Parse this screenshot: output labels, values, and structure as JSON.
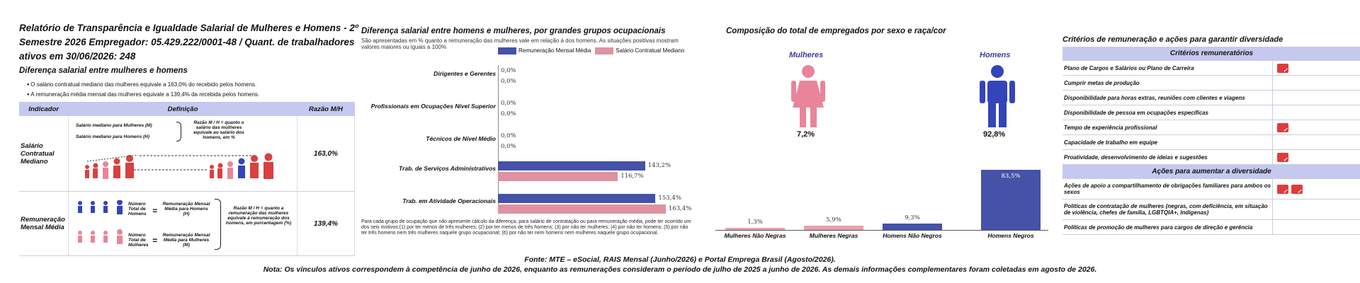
{
  "panel1": {
    "title": "Relatório de Transparência e Igualdade Salarial de Mulheres e Homens - 2º Semestre 2026 Empregador: 05.429.222/0001-48 / Quant. de trabalhadores ativos em 30/06/2026: 248",
    "subtitle": "Diferença salarial entre mulheres e homens",
    "bullets": [
      "O salário contratual mediano das mulheres equivale a 163,0% do recebido pelos homens.",
      "A remuneração média mensal das mulheres equivale a 139,4% da recebida pelos homens."
    ],
    "table": {
      "headers": [
        "Indicador",
        "Definição",
        "Razão M/H"
      ],
      "rows": [
        {
          "indicator": "Salário Contratual Mediano",
          "def_line1": "Salário mediano para Mulheres (M)",
          "def_line2": "Salário mediano para Homens (H)",
          "def_note": "Razão M / H = quanto o salário das mulheres equivale ao salário dos homens, em %",
          "ratio": "163,0%"
        },
        {
          "indicator": "Remuneração Mensal Média",
          "def_men_label": "Número Total de Homens",
          "def_men_result": "Remuneração Mensal Média para Homens (H)",
          "def_women_label": "Número Total de Mulheres",
          "def_women_result": "Remuneração Mensal Média para Mulheres (M)",
          "def_note": "Razão M / H = quanto a remuneração das mulheres equivale à remuneração dos homens, em porcentagem (%)",
          "ratio": "139,4%"
        }
      ]
    }
  },
  "panel2": {
    "title": "Diferença salarial entre homens e mulheres, por grandes grupos ocupacionais",
    "note": "São apresentadas em % quanto a remuneração das mulheres vale em relação à dos homens. As situações positivas mostram valores maiores ou iguais a 100%",
    "legend": [
      "Remuneração Mensal Média",
      "Salário Contratual Mediano"
    ],
    "colors": {
      "media": "#4452a8",
      "mediano": "#e092a0"
    },
    "footnote": "Para cada grupo de ocupação que não apresente cálculo da diferença, para salário de contratação ou para remuneração média, pode ter ocorrido um dos seis motivos:(1) por ter menos de três mulheres; (2) por ter menos de três homens; (3) por não ter mulheres; (4) por não ter homens; (5) por não ter três homens nem três mulheres naquele grupo ocupacional; (6) por não ter nem homens nem mulheres naquele grupo ocupacional.",
    "chart_data": {
      "type": "bar",
      "categories": [
        "Dirigentes e Gerentes",
        "Profissionais em Ocupações Nível Superior",
        "Técnicos de Nível Médio",
        "Trab. de Serviços Administrativos",
        "Trab. em Atividade Operacionais"
      ],
      "series": [
        {
          "name": "Remuneração Mensal Média",
          "values": [
            0,
            0,
            0,
            143.2,
            153.4
          ],
          "labels": [
            "0,0%",
            "0,0%",
            "0,0%",
            "143,2%",
            "153,4%"
          ]
        },
        {
          "name": "Salário Contratual Mediano",
          "values": [
            0,
            0,
            0,
            116.7,
            163.4
          ],
          "labels": [
            "0,0%",
            "0,0%",
            "0,0%",
            "116,7%",
            "163,4%"
          ]
        }
      ]
    }
  },
  "panel3": {
    "title": "Composição do total de empregados por sexo e raça/cor",
    "women_label": "Mulheres",
    "men_label": "Homens",
    "women_pct": "7,2%",
    "men_pct": "92,8%",
    "colors": {
      "women": "#e8859a",
      "men": "#3345b8"
    },
    "chart_data": {
      "type": "bar",
      "categories": [
        "Mulheres Não Negras",
        "Mulheres Negras",
        "Homens Não Negros",
        "Homens Negros"
      ],
      "values": [
        1.3,
        5.9,
        9.3,
        83.5
      ],
      "labels": [
        "1,3%",
        "5,9%",
        "9,3%",
        "83,5%"
      ],
      "colors": [
        "#e8a0ad",
        "#e8a0ad",
        "#4452a8",
        "#4452a8"
      ]
    }
  },
  "panel4": {
    "title": "Critérios de remuneração e ações para garantir diversidade",
    "section1": "Critérios remuneratórios",
    "criteria": [
      {
        "label": "Plano de Cargos e Salários ou Plano de Carreira",
        "icons": 1
      },
      {
        "label": "Cumprir metas de produção",
        "icons": 0
      },
      {
        "label": "Disponibilidade para horas extras, reuniões com clientes e viagens",
        "icons": 0
      },
      {
        "label": "Disponibilidade de pessoa em ocupações específicas",
        "icons": 0
      },
      {
        "label": "Tempo de experiência profissional",
        "icons": 1
      },
      {
        "label": "Capacidade de trabalho em equipe",
        "icons": 0
      },
      {
        "label": "Proatividade, desenvolvimento de ideias e sugestões",
        "icons": 1
      }
    ],
    "section2": "Ações para aumentar a diversidade",
    "actions": [
      {
        "label": "Ações de apoio a compartilhamento de obrigações familiares para ambos os sexos",
        "icons": 2
      },
      {
        "label": "Políticas de contratação de mulheres (negras, com deficiência, em situação de violência, chefes de família, LGBTQIA+, Indígenas)",
        "icons": 0
      },
      {
        "label": "Políticas de promoção de mulheres para cargos de direção e gerência",
        "icons": 0
      }
    ]
  },
  "footer": {
    "source": "Fonte: MTE – eSocial, RAIS Mensal (Junho/2026) e Portal Emprega Brasil (Agosto/2026).",
    "note": "Nota: Os vínculos ativos correspondem à competência de junho de 2026, enquanto as remunerações consideram o período de julho de 2025 a junho de 2026. As demais informações complementares foram coletadas em agosto de 2026."
  }
}
